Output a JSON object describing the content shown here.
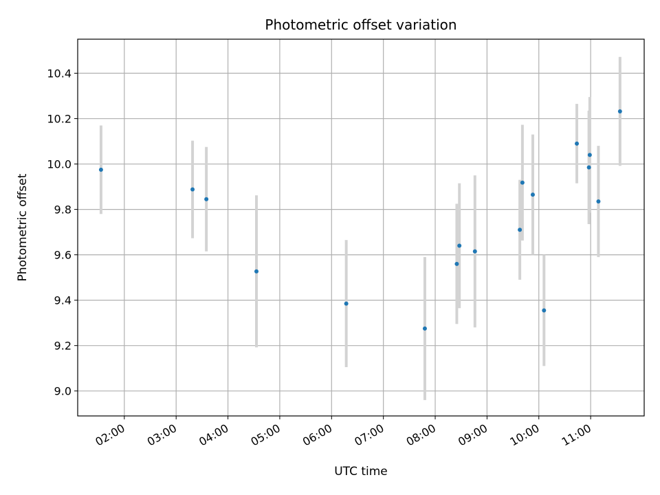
{
  "chart_data": {
    "type": "scatter",
    "title": "Photometric offset variation",
    "xlabel": "UTC time",
    "ylabel": "Photometric offset",
    "x_ticks": [
      "02:00",
      "03:00",
      "04:00",
      "05:00",
      "06:00",
      "07:00",
      "08:00",
      "09:00",
      "10:00",
      "11:00"
    ],
    "y_ticks": [
      "9.0",
      "9.2",
      "9.4",
      "9.6",
      "9.8",
      "10.0",
      "10.2",
      "10.4"
    ],
    "xlim": [
      "01:06",
      "12:02"
    ],
    "ylim": [
      8.89,
      10.55
    ],
    "grid": true,
    "colors": {
      "point": "#1f77b4",
      "errorbar": "#d3d3d3",
      "grid": "#b0b0b0"
    },
    "points": [
      {
        "x": "01:33",
        "y": 9.975,
        "err": 0.195
      },
      {
        "x": "03:19",
        "y": 9.888,
        "err": 0.215
      },
      {
        "x": "03:35",
        "y": 9.845,
        "err": 0.23
      },
      {
        "x": "04:33",
        "y": 9.527,
        "err": 0.335
      },
      {
        "x": "06:17",
        "y": 9.385,
        "err": 0.28
      },
      {
        "x": "07:48",
        "y": 9.275,
        "err": 0.315
      },
      {
        "x": "08:25",
        "y": 9.56,
        "err": 0.265
      },
      {
        "x": "08:28",
        "y": 9.64,
        "err": 0.275
      },
      {
        "x": "08:46",
        "y": 9.615,
        "err": 0.335
      },
      {
        "x": "09:38",
        "y": 9.71,
        "err": 0.22
      },
      {
        "x": "09:41",
        "y": 9.918,
        "err": 0.255
      },
      {
        "x": "09:53",
        "y": 9.865,
        "err": 0.265
      },
      {
        "x": "10:06",
        "y": 9.355,
        "err": 0.245
      },
      {
        "x": "10:44",
        "y": 10.09,
        "err": 0.175
      },
      {
        "x": "10:58",
        "y": 9.985,
        "err": 0.25
      },
      {
        "x": "10:59",
        "y": 10.04,
        "err": 0.255
      },
      {
        "x": "11:09",
        "y": 9.835,
        "err": 0.245
      },
      {
        "x": "11:34",
        "y": 10.232,
        "err": 0.24
      }
    ]
  }
}
